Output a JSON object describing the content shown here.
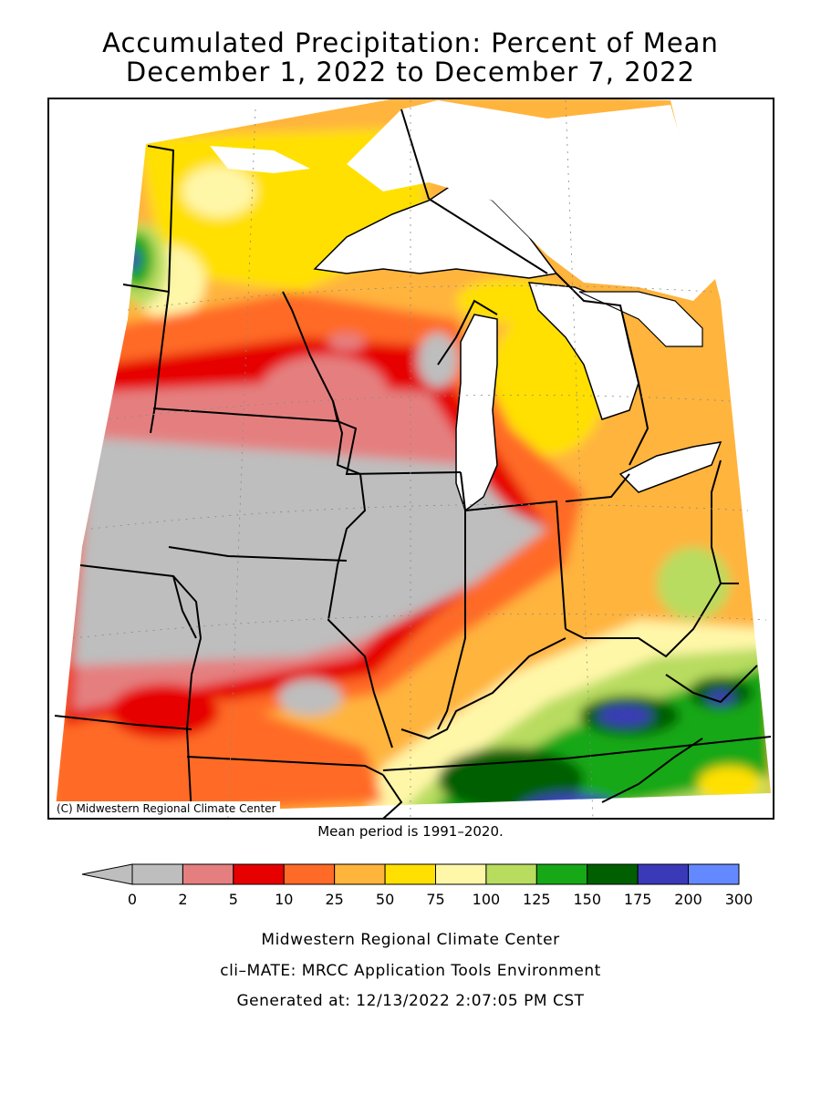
{
  "title_line1": "Accumulated Precipitation: Percent of Mean",
  "title_line2": "December 1, 2022 to December 7, 2022",
  "mean_period": "Mean period is 1991–2020.",
  "copyright": "(C) Midwestern Regional Climate Center",
  "footer": {
    "line1": "Midwestern Regional Climate Center",
    "line2": "cli–MATE: MRCC Application Tools Environment",
    "line3": "Generated at: 12/13/2022 2:07:05 PM CST"
  },
  "legend": {
    "tick_labels": [
      "0",
      "2",
      "5",
      "10",
      "25",
      "50",
      "75",
      "100",
      "125",
      "150",
      "175",
      "200",
      "300"
    ],
    "colors": [
      "#bebebe",
      "#e57f7f",
      "#e60000",
      "#ff6a28",
      "#ffb43c",
      "#ffe000",
      "#fff7a8",
      "#b8dc5e",
      "#17a817",
      "#005f00",
      "#3a3ab8",
      "#6488ff"
    ]
  }
}
